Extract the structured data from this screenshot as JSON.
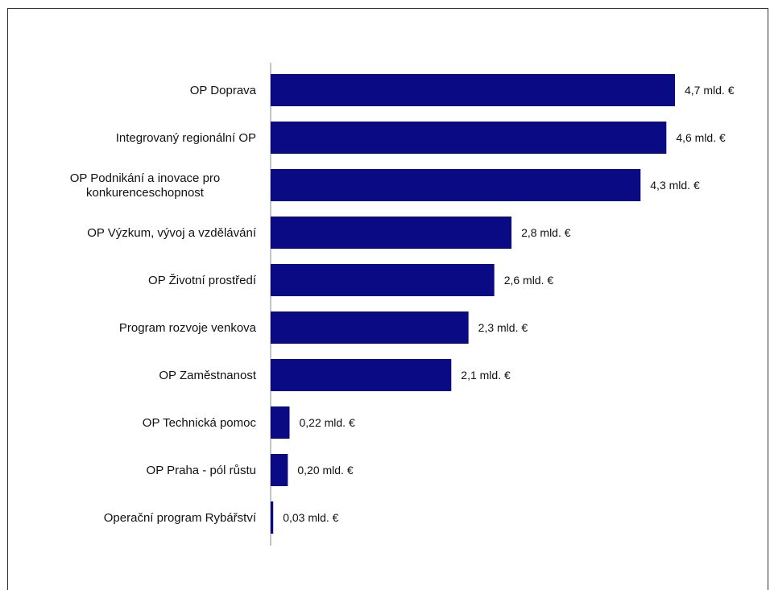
{
  "chart_data": {
    "type": "bar",
    "orientation": "horizontal",
    "categories": [
      [
        "OP Doprava"
      ],
      [
        "Integrovaný regionální OP"
      ],
      [
        "OP Podnikání a inovace pro",
        "konkurenceschopnost"
      ],
      [
        "OP Výzkum, vývoj a vzdělávání"
      ],
      [
        "OP Životní prostředí"
      ],
      [
        "Program rozvoje venkova"
      ],
      [
        "OP Zaměstnanost"
      ],
      [
        "OP Technická pomoc"
      ],
      [
        "OP Praha - pól růstu"
      ],
      [
        "Operační program Rybářství"
      ]
    ],
    "values": [
      4.7,
      4.6,
      4.3,
      2.8,
      2.6,
      2.3,
      2.1,
      0.22,
      0.2,
      0.03
    ],
    "data_labels": [
      "4,7 mld. €",
      "4,6 mld. €",
      "4,3 mld. €",
      "2,8 mld. €",
      "2,6 mld. €",
      "2,3 mld. €",
      "2,1 mld. €",
      "0,22 mld. €",
      "0,20 mld. €",
      "0,03 mld. €"
    ],
    "bar_color": "#0a0a84",
    "axis_color": "#888888",
    "xlim": [
      0,
      4.7
    ],
    "grid": false,
    "legend": "none"
  }
}
